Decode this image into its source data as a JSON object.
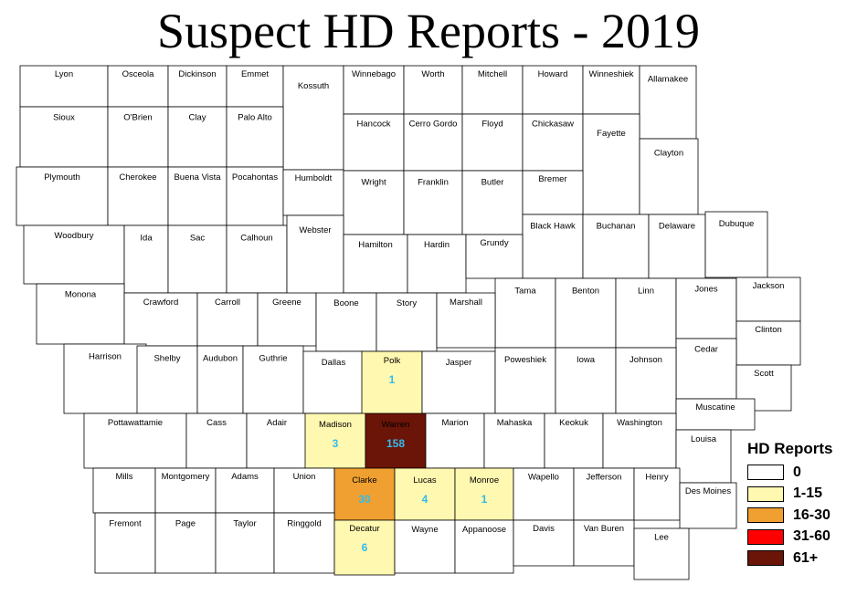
{
  "title": "Suspect HD Reports - 2019",
  "colors": {
    "zero": "#ffffff",
    "low": "#fff8b0",
    "mid": "#f0a030",
    "high": "#ff0000",
    "top": "#6b1408",
    "count_text": "#33bbee"
  },
  "legend": {
    "title": "HD Reports",
    "items": [
      {
        "label": "0",
        "color": "#ffffff"
      },
      {
        "label": "1-15",
        "color": "#fff8b0"
      },
      {
        "label": "16-30",
        "color": "#f0a030"
      },
      {
        "label": "31-60",
        "color": "#ff0000"
      },
      {
        "label": "61+",
        "color": "#6b1408"
      }
    ]
  },
  "counties": [
    {
      "name": "Lyon",
      "count": 0
    },
    {
      "name": "Osceola",
      "count": 0
    },
    {
      "name": "Dickinson",
      "count": 0
    },
    {
      "name": "Emmet",
      "count": 0
    },
    {
      "name": "Kossuth",
      "count": 0
    },
    {
      "name": "Winnebago",
      "count": 0
    },
    {
      "name": "Worth",
      "count": 0
    },
    {
      "name": "Mitchell",
      "count": 0
    },
    {
      "name": "Howard",
      "count": 0
    },
    {
      "name": "Winneshiek",
      "count": 0
    },
    {
      "name": "Allamakee",
      "count": 0
    },
    {
      "name": "Sioux",
      "count": 0
    },
    {
      "name": "O'Brien",
      "count": 0
    },
    {
      "name": "Clay",
      "count": 0
    },
    {
      "name": "Palo Alto",
      "count": 0
    },
    {
      "name": "Hancock",
      "count": 0
    },
    {
      "name": "Cerro Gordo",
      "count": 0
    },
    {
      "name": "Floyd",
      "count": 0
    },
    {
      "name": "Chickasaw",
      "count": 0
    },
    {
      "name": "Fayette",
      "count": 0
    },
    {
      "name": "Clayton",
      "count": 0
    },
    {
      "name": "Plymouth",
      "count": 0
    },
    {
      "name": "Cherokee",
      "count": 0
    },
    {
      "name": "Buena Vista",
      "count": 0
    },
    {
      "name": "Pocahontas",
      "count": 0
    },
    {
      "name": "Humboldt",
      "count": 0
    },
    {
      "name": "Wright",
      "count": 0
    },
    {
      "name": "Franklin",
      "count": 0
    },
    {
      "name": "Butler",
      "count": 0
    },
    {
      "name": "Bremer",
      "count": 0
    },
    {
      "name": "Black Hawk",
      "count": 0
    },
    {
      "name": "Buchanan",
      "count": 0
    },
    {
      "name": "Delaware",
      "count": 0
    },
    {
      "name": "Dubuque",
      "count": 0
    },
    {
      "name": "Woodbury",
      "count": 0
    },
    {
      "name": "Ida",
      "count": 0
    },
    {
      "name": "Sac",
      "count": 0
    },
    {
      "name": "Calhoun",
      "count": 0
    },
    {
      "name": "Webster",
      "count": 0
    },
    {
      "name": "Hamilton",
      "count": 0
    },
    {
      "name": "Hardin",
      "count": 0
    },
    {
      "name": "Grundy",
      "count": 0
    },
    {
      "name": "Tama",
      "count": 0
    },
    {
      "name": "Benton",
      "count": 0
    },
    {
      "name": "Linn",
      "count": 0
    },
    {
      "name": "Jones",
      "count": 0
    },
    {
      "name": "Jackson",
      "count": 0
    },
    {
      "name": "Monona",
      "count": 0
    },
    {
      "name": "Crawford",
      "count": 0
    },
    {
      "name": "Carroll",
      "count": 0
    },
    {
      "name": "Greene",
      "count": 0
    },
    {
      "name": "Boone",
      "count": 0
    },
    {
      "name": "Story",
      "count": 0
    },
    {
      "name": "Marshall",
      "count": 0
    },
    {
      "name": "Clinton",
      "count": 0
    },
    {
      "name": "Cedar",
      "count": 0
    },
    {
      "name": "Scott",
      "count": 0
    },
    {
      "name": "Harrison",
      "count": 0
    },
    {
      "name": "Shelby",
      "count": 0
    },
    {
      "name": "Audubon",
      "count": 0
    },
    {
      "name": "Guthrie",
      "count": 0
    },
    {
      "name": "Dallas",
      "count": 0
    },
    {
      "name": "Polk",
      "count": 1
    },
    {
      "name": "Jasper",
      "count": 0
    },
    {
      "name": "Poweshiek",
      "count": 0
    },
    {
      "name": "Iowa",
      "count": 0
    },
    {
      "name": "Johnson",
      "count": 0
    },
    {
      "name": "Muscatine",
      "count": 0
    },
    {
      "name": "Pottawattamie",
      "count": 0
    },
    {
      "name": "Cass",
      "count": 0
    },
    {
      "name": "Adair",
      "count": 0
    },
    {
      "name": "Madison",
      "count": 3
    },
    {
      "name": "Warren",
      "count": 158
    },
    {
      "name": "Marion",
      "count": 0
    },
    {
      "name": "Mahaska",
      "count": 0
    },
    {
      "name": "Keokuk",
      "count": 0
    },
    {
      "name": "Washington",
      "count": 0
    },
    {
      "name": "Louisa",
      "count": 0
    },
    {
      "name": "Mills",
      "count": 0
    },
    {
      "name": "Montgomery",
      "count": 0
    },
    {
      "name": "Adams",
      "count": 0
    },
    {
      "name": "Union",
      "count": 0
    },
    {
      "name": "Clarke",
      "count": 30
    },
    {
      "name": "Lucas",
      "count": 4
    },
    {
      "name": "Monroe",
      "count": 1
    },
    {
      "name": "Wapello",
      "count": 0
    },
    {
      "name": "Jefferson",
      "count": 0
    },
    {
      "name": "Henry",
      "count": 0
    },
    {
      "name": "Des Moines",
      "count": 0
    },
    {
      "name": "Fremont",
      "count": 0
    },
    {
      "name": "Page",
      "count": 0
    },
    {
      "name": "Taylor",
      "count": 0
    },
    {
      "name": "Ringgold",
      "count": 0
    },
    {
      "name": "Decatur",
      "count": 6
    },
    {
      "name": "Wayne",
      "count": 0
    },
    {
      "name": "Appanoose",
      "count": 0
    },
    {
      "name": "Davis",
      "count": 0
    },
    {
      "name": "Van Buren",
      "count": 0
    },
    {
      "name": "Lee",
      "count": 0
    }
  ]
}
